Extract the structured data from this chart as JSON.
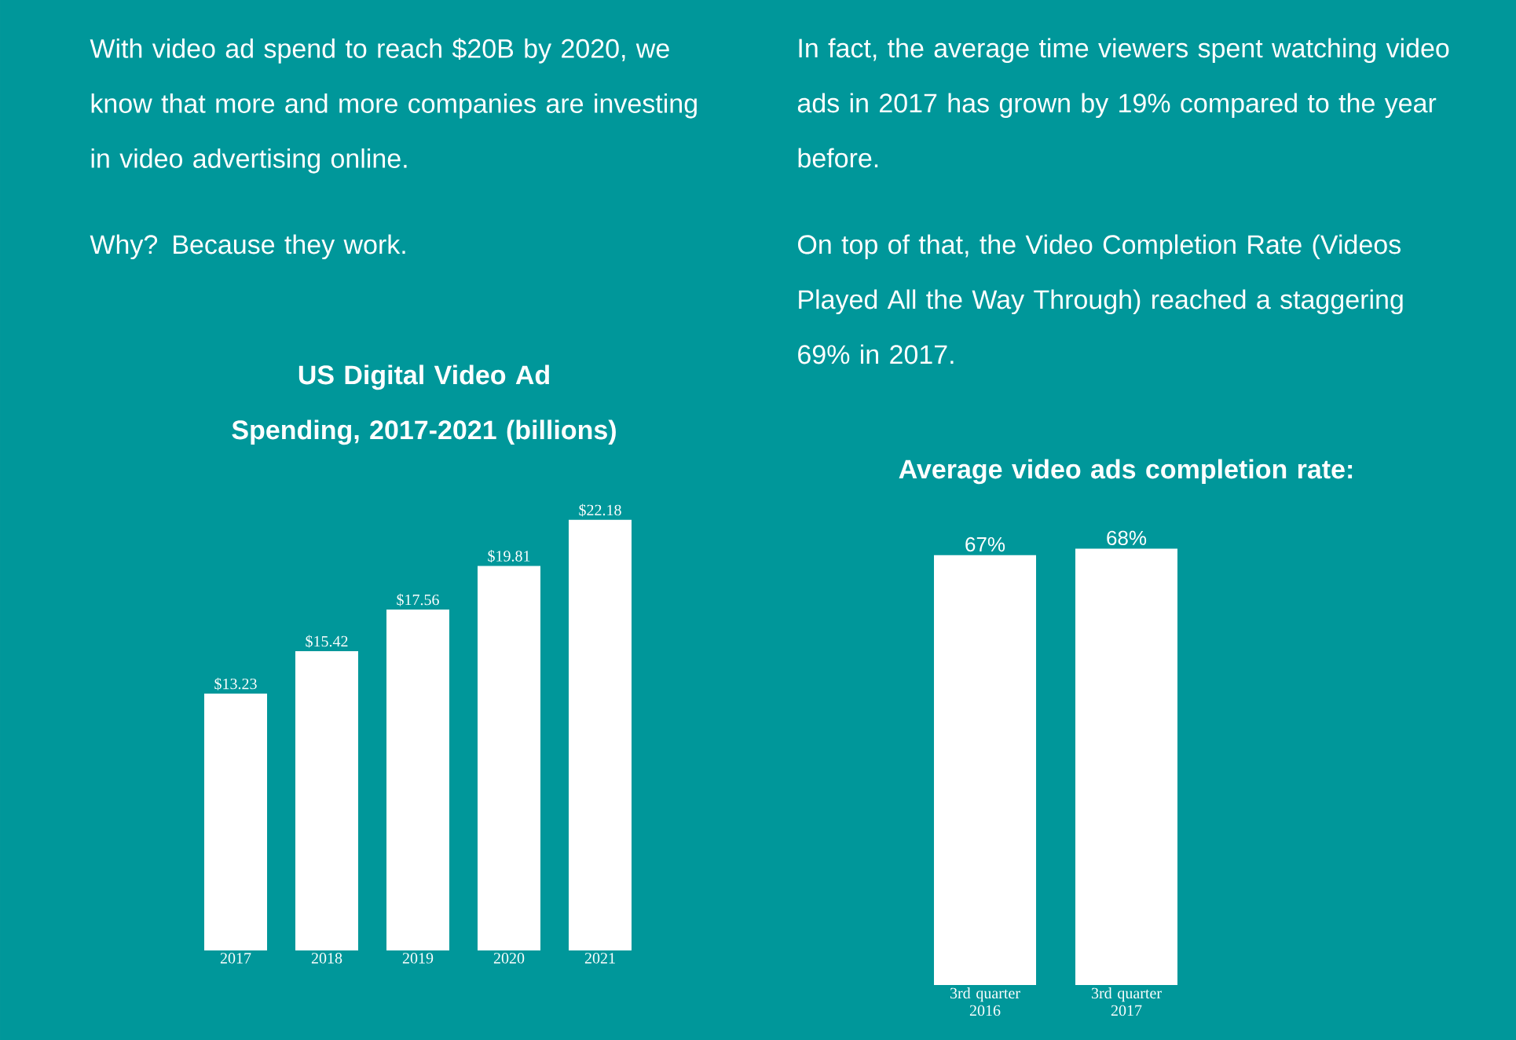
{
  "chart_data": [
    {
      "type": "bar",
      "title": "US Digital Video Ad Spending, 2017-2021 (billions)",
      "categories": [
        "2017",
        "2018",
        "2019",
        "2020",
        "2021"
      ],
      "values": [
        13.23,
        15.42,
        17.56,
        19.81,
        22.18
      ],
      "value_labels": [
        "$13.23",
        "$15.42",
        "$17.56",
        "$19.81",
        "$22.18"
      ],
      "color": "#ffffff",
      "annotations": [
        "With video ad spend to reach $20B by 2020, we know that more and more companies are investing in video advertising online.",
        "Why? Because they work."
      ]
    },
    {
      "type": "bar",
      "title": "Average video ads completion rate:",
      "categories": [
        "3rd quarter 2016",
        "3rd quarter 2017"
      ],
      "values": [
        67,
        68
      ],
      "value_labels": [
        "67%",
        "68%"
      ],
      "color": "#ffffff",
      "annotations": [
        "In fact, the average time viewers spent watching video ads in 2017 has grown by 19% compared to the year before.",
        "On top of that, the Video Completion Rate (Videos Played All the Way Through) reached a staggering 69% in 2017."
      ]
    }
  ]
}
